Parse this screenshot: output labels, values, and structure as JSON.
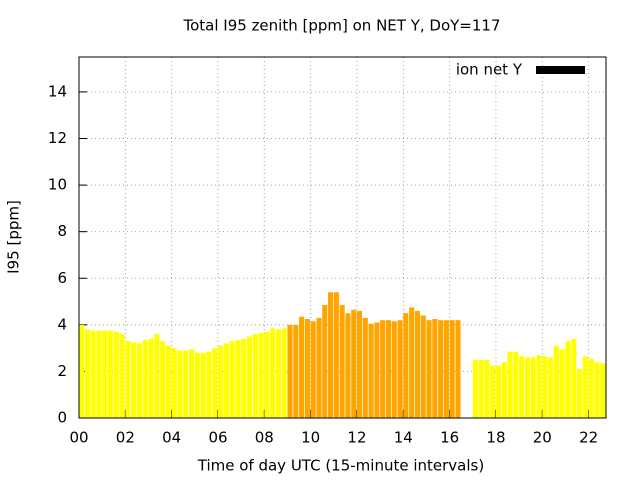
{
  "chart_data": {
    "type": "bar",
    "title": "Total I95 zenith [ppm] on NET Y, DoY=117",
    "x_label": "Time of day UTC (15-minute intervals)",
    "y_label": "I95 [ppm]",
    "x": [
      0,
      0.25,
      0.5,
      0.75,
      1,
      1.25,
      1.5,
      1.75,
      2,
      2.25,
      2.5,
      2.75,
      3,
      3.25,
      3.5,
      3.75,
      4,
      4.25,
      4.5,
      4.75,
      5,
      5.25,
      5.5,
      5.75,
      6,
      6.25,
      6.5,
      6.75,
      7,
      7.25,
      7.5,
      7.75,
      8,
      8.25,
      8.5,
      8.75,
      9,
      9.25,
      9.5,
      9.75,
      10,
      10.25,
      10.5,
      10.75,
      11,
      11.25,
      11.5,
      11.75,
      12,
      12.25,
      12.5,
      12.75,
      13,
      13.25,
      13.5,
      13.75,
      14,
      14.25,
      14.5,
      14.75,
      15,
      15.25,
      15.5,
      15.75,
      16,
      16.25,
      16.5,
      16.75,
      17,
      17.25,
      17.5,
      17.75,
      18,
      18.25,
      18.5,
      18.75,
      19,
      19.25,
      19.5,
      19.75,
      20,
      20.25,
      20.5,
      20.75,
      21,
      21.25,
      21.5,
      21.75,
      22,
      22.25,
      22.5
    ],
    "series": [
      {
        "name": "ion net Y",
        "color": "#000000",
        "values": [
          4.0,
          3.8,
          3.75,
          3.75,
          3.75,
          3.75,
          3.7,
          3.6,
          3.3,
          3.25,
          3.2,
          3.35,
          3.4,
          3.6,
          3.3,
          3.1,
          3.0,
          2.9,
          2.9,
          2.95,
          2.8,
          2.8,
          2.85,
          3.0,
          3.1,
          3.2,
          3.3,
          3.35,
          3.4,
          3.5,
          3.6,
          3.65,
          3.7,
          3.85,
          3.8,
          3.85,
          4.0,
          4.0,
          4.35,
          4.25,
          4.15,
          4.3,
          4.85,
          5.4,
          5.4,
          4.85,
          4.5,
          4.65,
          4.6,
          4.3,
          4.05,
          4.1,
          4.2,
          4.2,
          4.15,
          4.2,
          4.5,
          4.75,
          4.6,
          4.4,
          4.2,
          4.25,
          4.2,
          4.2,
          4.2,
          4.2,
          null,
          null,
          2.5,
          2.5,
          2.5,
          2.25,
          2.25,
          2.4,
          2.85,
          2.85,
          2.65,
          2.6,
          2.6,
          2.7,
          2.65,
          2.6,
          3.1,
          2.95,
          3.3,
          3.4,
          2.1,
          2.65,
          2.55,
          2.4,
          2.35
        ],
        "bar_colors": [
          "#ffff00",
          "#ffff00",
          "#ffff00",
          "#ffff00",
          "#ffff00",
          "#ffff00",
          "#ffff00",
          "#ffff00",
          "#ffff00",
          "#ffff00",
          "#ffff00",
          "#ffff00",
          "#ffff00",
          "#ffff00",
          "#ffff00",
          "#ffff00",
          "#ffff00",
          "#ffff00",
          "#ffff00",
          "#ffff00",
          "#ffff00",
          "#ffff00",
          "#ffff00",
          "#ffff00",
          "#ffff00",
          "#ffff00",
          "#ffff00",
          "#ffff00",
          "#ffff00",
          "#ffff00",
          "#ffff00",
          "#ffff00",
          "#ffff00",
          "#ffff00",
          "#ffff00",
          "#ffff00",
          "#ffa500",
          "#ffa500",
          "#ffa500",
          "#ffa500",
          "#ffa500",
          "#ffa500",
          "#ffa500",
          "#ffa500",
          "#ffa500",
          "#ffa500",
          "#ffa500",
          "#ffa500",
          "#ffa500",
          "#ffa500",
          "#ffa500",
          "#ffa500",
          "#ffa500",
          "#ffa500",
          "#ffa500",
          "#ffa500",
          "#ffa500",
          "#ffa500",
          "#ffa500",
          "#ffa500",
          "#ffa500",
          "#ffa500",
          "#ffa500",
          "#ffa500",
          "#ffa500",
          "#ffa500",
          null,
          null,
          "#ffff00",
          "#ffff00",
          "#ffff00",
          "#ffff00",
          "#ffff00",
          "#ffff00",
          "#ffff00",
          "#ffff00",
          "#ffff00",
          "#ffff00",
          "#ffff00",
          "#ffff00",
          "#ffff00",
          "#ffff00",
          "#ffff00",
          "#ffff00",
          "#ffff00",
          "#ffff00",
          "#ffff00",
          "#ffff00",
          "#ffff00",
          "#ffff00",
          "#ffff00"
        ]
      }
    ],
    "bar_width": 0.22,
    "xlim": [
      0,
      22.75
    ],
    "ylim": [
      0,
      15.5
    ],
    "xticks": [
      {
        "value": 0,
        "label": "00"
      },
      {
        "value": 2,
        "label": "02"
      },
      {
        "value": 4,
        "label": "04"
      },
      {
        "value": 6,
        "label": "06"
      },
      {
        "value": 8,
        "label": "08"
      },
      10,
      12,
      14,
      16,
      18,
      20,
      22
    ],
    "yticks": [
      0,
      2,
      4,
      6,
      8,
      10,
      12,
      14
    ],
    "grid": true,
    "legend_position": "top-right"
  }
}
